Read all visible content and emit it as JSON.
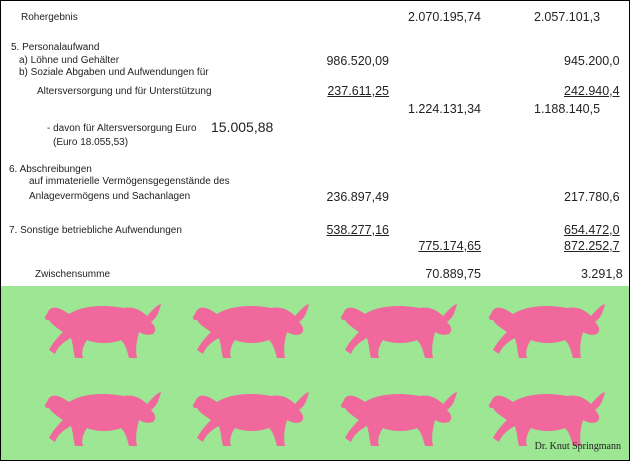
{
  "rows": {
    "rohergebnis": {
      "label": "Rohergebnis",
      "col3": "2.070.195,74",
      "col4": "2.057.101,3"
    },
    "personal": {
      "heading": "5.  Personalaufwand",
      "a_label": "a)  Löhne und Gehälter",
      "a_col2": "986.520,09",
      "a_col4": "945.200,0",
      "b_label1": "b)  Soziale Abgaben und Aufwendungen für",
      "b_label2": "Altersversorgung und für Unterstützung",
      "b_col2": "237.611,25",
      "b_col4": "242.940,4",
      "sum_col3": "1.224.131,34",
      "sum_col4": "1.188.140,5",
      "davon_label": "-   davon für Altersversorgung Euro",
      "davon_value": "15.005,88",
      "davon_prev": "(Euro 18.055,53)"
    },
    "abschreibungen": {
      "heading": "6.  Abschreibungen",
      "label1": "auf immaterielle Vermögensgegenstände des",
      "label2": "Anlagevermögens und Sachanlagen",
      "col2": "236.897,49",
      "col4": "217.780,6"
    },
    "sonstige": {
      "label": "7.  Sonstige betriebliche Aufwendungen",
      "col2": "538.277,16",
      "col4": "654.472,0",
      "sum_col3": "775.174,65",
      "sum_col4": "872.252,7"
    },
    "zwischensumme": {
      "label": "Zwischensumme",
      "col3": "70.889,75",
      "col4": "3.291,8"
    }
  },
  "credit": "Dr. Knut Springmann",
  "colors": {
    "bull": "#f0689c",
    "background": "#9ce694"
  },
  "icon": "bull-icon"
}
